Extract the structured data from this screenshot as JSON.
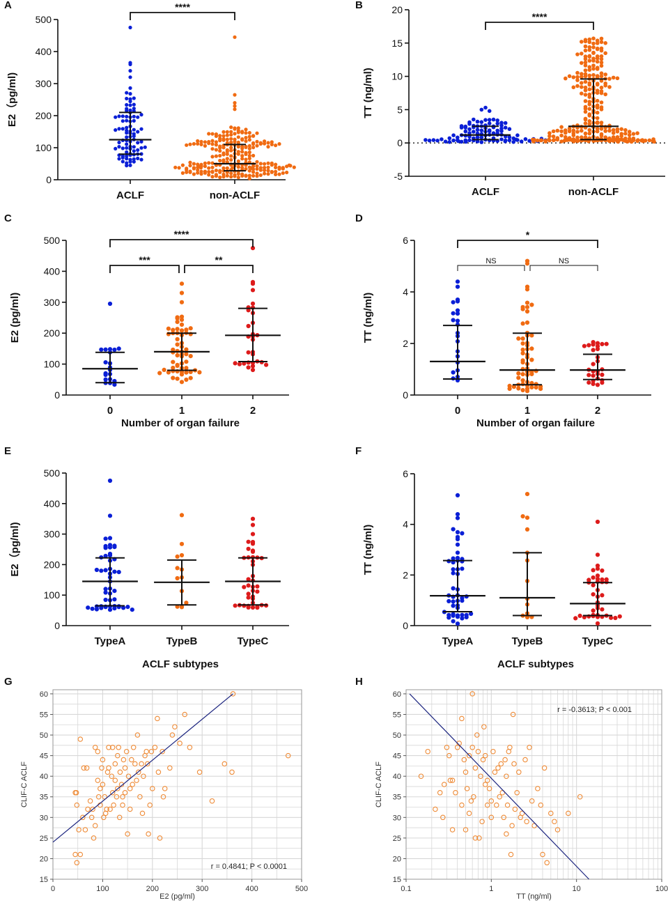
{
  "figure": {
    "panel_letters": [
      "A",
      "B",
      "C",
      "D",
      "E",
      "F",
      "G",
      "H"
    ]
  },
  "colors": {
    "blue": "#0a1fd6",
    "orange": "#f06b12",
    "red": "#dd1b1b",
    "scatter_marker": "#ee8a35",
    "fit_line": "#1a237e",
    "axis": "#111111",
    "grid": "#d7d7d7"
  },
  "chart_data": [
    {
      "id": "A",
      "type": "scatter-dot-plot",
      "ylabel": "E2（pg/ml)",
      "ylim": [
        0,
        500
      ],
      "yticks": [
        0,
        100,
        200,
        300,
        400,
        500
      ],
      "categories": [
        "ACLF",
        "non-ACLF"
      ],
      "groups": [
        {
          "name": "ACLF",
          "color": "blue",
          "n": 90,
          "median": 125,
          "q1": 80,
          "q3": 210,
          "min": 25,
          "max": 475,
          "outliers": [
            475,
            365,
            360,
            340,
            320
          ]
        },
        {
          "name": "non-ACLF",
          "color": "orange",
          "n": 260,
          "median": 50,
          "q1": 28,
          "q3": 110,
          "min": 2,
          "max": 445,
          "outliers": [
            445,
            265,
            240,
            230,
            220
          ]
        }
      ],
      "significance": [
        {
          "from": 0,
          "to": 1,
          "label": "****"
        }
      ]
    },
    {
      "id": "B",
      "type": "scatter-dot-plot",
      "ylabel": "TT (ng/ml)",
      "ylim": [
        -5,
        20
      ],
      "yticks": [
        -5,
        0,
        5,
        10,
        15,
        20
      ],
      "zero_line": true,
      "categories": [
        "ACLF",
        "non-ACLF"
      ],
      "groups": [
        {
          "name": "ACLF",
          "color": "blue",
          "n": 100,
          "median": 1.2,
          "q1": 0.5,
          "q3": 2.5,
          "min": 0.1,
          "max": 5.3,
          "outliers": [
            5.3,
            5.0,
            4.8
          ]
        },
        {
          "name": "non-ACLF",
          "color": "orange",
          "n": 280,
          "median": 2.5,
          "q1": 0.5,
          "q3": 9.6,
          "min": 0.1,
          "max": 15.2,
          "outliers": [
            15.2,
            15.0,
            14.5,
            14.2
          ]
        }
      ],
      "significance": [
        {
          "from": 0,
          "to": 1,
          "label": "****"
        }
      ]
    },
    {
      "id": "C",
      "type": "scatter-dot-plot",
      "ylabel": "E2 (pg/ml)",
      "xlabel": "Number of organ failure",
      "ylim": [
        0,
        500
      ],
      "yticks": [
        0,
        100,
        200,
        300,
        400,
        500
      ],
      "categories": [
        "0",
        "1",
        "2"
      ],
      "groups": [
        {
          "name": "0",
          "color": "blue",
          "n": 20,
          "median": 85,
          "q1": 40,
          "q3": 138,
          "min": 30,
          "max": 295,
          "outliers": [
            295,
            150
          ]
        },
        {
          "name": "1",
          "color": "orange",
          "n": 60,
          "median": 140,
          "q1": 80,
          "q3": 200,
          "min": 40,
          "max": 360,
          "outliers": [
            360,
            330,
            300
          ]
        },
        {
          "name": "2",
          "color": "red",
          "n": 30,
          "median": 193,
          "q1": 108,
          "q3": 280,
          "min": 80,
          "max": 475,
          "outliers": [
            475,
            365,
            360
          ]
        }
      ],
      "significance": [
        {
          "from": 0,
          "to": 2,
          "label": "****"
        },
        {
          "from": 0,
          "to": 1,
          "label": "***"
        },
        {
          "from": 1,
          "to": 2,
          "label": "**"
        }
      ]
    },
    {
      "id": "D",
      "type": "scatter-dot-plot",
      "ylabel": "TT (ng/ml)",
      "xlabel": "Number of organ failure",
      "ylim": [
        0,
        6
      ],
      "yticks": [
        0,
        2,
        4,
        6
      ],
      "categories": [
        "0",
        "1",
        "2"
      ],
      "groups": [
        {
          "name": "0",
          "color": "blue",
          "n": 22,
          "median": 1.3,
          "q1": 0.62,
          "q3": 2.7,
          "min": 0.3,
          "max": 4.4,
          "outliers": [
            4.4,
            4.2,
            3.7,
            3.6
          ]
        },
        {
          "name": "1",
          "color": "orange",
          "n": 60,
          "median": 0.97,
          "q1": 0.4,
          "q3": 2.4,
          "min": 0.05,
          "max": 5.2,
          "outliers": [
            5.2,
            5.1,
            4.2,
            4.1,
            3.5
          ]
        },
        {
          "name": "2",
          "color": "red",
          "n": 28,
          "median": 0.97,
          "q1": 0.6,
          "q3": 1.58,
          "min": 0.2,
          "max": 2.05,
          "outliers": [
            2.05,
            1.9
          ]
        }
      ],
      "significance": [
        {
          "from": 0,
          "to": 2,
          "label": "*"
        },
        {
          "from": 0,
          "to": 1,
          "label": "NS"
        },
        {
          "from": 1,
          "to": 2,
          "label": "NS"
        }
      ]
    },
    {
      "id": "E",
      "type": "scatter-dot-plot",
      "ylabel": "E2（pg/ml)",
      "xlabel": "ACLF subtypes",
      "ylim": [
        0,
        500
      ],
      "yticks": [
        0,
        100,
        200,
        300,
        400,
        500
      ],
      "categories": [
        "TypeA",
        "TypeB",
        "TypeC"
      ],
      "groups": [
        {
          "name": "TypeA",
          "color": "blue",
          "n": 50,
          "median": 145,
          "q1": 65,
          "q3": 222,
          "min": 45,
          "max": 475,
          "outliers": [
            475,
            360,
            285
          ]
        },
        {
          "name": "TypeB",
          "color": "orange",
          "n": 13,
          "median": 142,
          "q1": 68,
          "q3": 215,
          "min": 40,
          "max": 362,
          "outliers": [
            362
          ]
        },
        {
          "name": "TypeC",
          "color": "red",
          "n": 40,
          "median": 145,
          "q1": 68,
          "q3": 222,
          "min": 55,
          "max": 350,
          "outliers": [
            350,
            330,
            300
          ]
        }
      ]
    },
    {
      "id": "F",
      "type": "scatter-dot-plot",
      "ylabel": "TT (ng/ml)",
      "xlabel": "ACLF subtypes",
      "ylim": [
        0,
        6
      ],
      "yticks": [
        0,
        2,
        4,
        6
      ],
      "categories": [
        "TypeA",
        "TypeB",
        "TypeC"
      ],
      "groups": [
        {
          "name": "TypeA",
          "color": "blue",
          "n": 50,
          "median": 1.18,
          "q1": 0.55,
          "q3": 2.57,
          "min": 0.05,
          "max": 5.15,
          "outliers": [
            5.15,
            4.4,
            4.25,
            3.5,
            3.2
          ]
        },
        {
          "name": "TypeB",
          "color": "orange",
          "n": 13,
          "median": 1.1,
          "q1": 0.4,
          "q3": 2.88,
          "min": 0.3,
          "max": 5.2,
          "outliers": [
            5.2,
            3.8
          ]
        },
        {
          "name": "TypeC",
          "color": "red",
          "n": 40,
          "median": 0.87,
          "q1": 0.4,
          "q3": 1.7,
          "min": 0.05,
          "max": 4.1,
          "outliers": [
            4.1,
            2.8
          ]
        }
      ]
    },
    {
      "id": "G",
      "type": "scatter",
      "xlabel": "E2 (pg/ml)",
      "ylabel": "CLIF-C ACLF",
      "xlim": [
        0,
        500
      ],
      "ylim": [
        15,
        61
      ],
      "xticks": [
        0,
        100,
        200,
        300,
        400,
        500
      ],
      "yticks": [
        15,
        20,
        25,
        30,
        35,
        40,
        45,
        50,
        55,
        60
      ],
      "annotation": "r = 0.4841; P < 0.0001",
      "fit_line": [
        [
          0,
          24
        ],
        [
          362,
          60
        ]
      ],
      "points": [
        [
          45,
          21
        ],
        [
          55,
          21
        ],
        [
          48,
          19
        ],
        [
          52,
          27
        ],
        [
          45,
          36
        ],
        [
          48,
          33
        ],
        [
          47,
          36
        ],
        [
          55,
          49
        ],
        [
          60,
          30
        ],
        [
          62,
          42
        ],
        [
          65,
          27
        ],
        [
          68,
          42
        ],
        [
          70,
          32
        ],
        [
          75,
          34
        ],
        [
          78,
          30
        ],
        [
          80,
          32
        ],
        [
          82,
          25
        ],
        [
          85,
          28
        ],
        [
          85,
          47
        ],
        [
          90,
          46
        ],
        [
          90,
          39
        ],
        [
          92,
          35
        ],
        [
          95,
          33
        ],
        [
          95,
          37
        ],
        [
          98,
          42
        ],
        [
          100,
          44
        ],
        [
          100,
          38
        ],
        [
          102,
          30
        ],
        [
          104,
          35
        ],
        [
          106,
          31
        ],
        [
          108,
          32
        ],
        [
          110,
          41
        ],
        [
          112,
          47
        ],
        [
          112,
          42
        ],
        [
          115,
          32
        ],
        [
          118,
          40
        ],
        [
          120,
          36
        ],
        [
          120,
          47
        ],
        [
          122,
          33
        ],
        [
          125,
          39
        ],
        [
          125,
          43
        ],
        [
          128,
          35
        ],
        [
          130,
          37
        ],
        [
          130,
          45
        ],
        [
          132,
          47
        ],
        [
          134,
          30
        ],
        [
          135,
          41
        ],
        [
          138,
          38
        ],
        [
          140,
          33
        ],
        [
          140,
          35
        ],
        [
          142,
          44
        ],
        [
          145,
          36
        ],
        [
          145,
          42
        ],
        [
          148,
          46
        ],
        [
          150,
          26
        ],
        [
          152,
          40
        ],
        [
          155,
          37
        ],
        [
          155,
          32
        ],
        [
          158,
          44
        ],
        [
          160,
          38
        ],
        [
          162,
          47
        ],
        [
          165,
          43
        ],
        [
          168,
          39
        ],
        [
          170,
          50
        ],
        [
          172,
          41
        ],
        [
          175,
          35
        ],
        [
          178,
          43
        ],
        [
          180,
          31
        ],
        [
          182,
          40
        ],
        [
          185,
          45
        ],
        [
          188,
          46
        ],
        [
          190,
          43
        ],
        [
          192,
          26
        ],
        [
          195,
          33
        ],
        [
          198,
          46
        ],
        [
          200,
          37
        ],
        [
          205,
          47
        ],
        [
          210,
          54
        ],
        [
          212,
          41
        ],
        [
          215,
          25
        ],
        [
          220,
          46
        ],
        [
          222,
          35
        ],
        [
          225,
          37
        ],
        [
          235,
          42
        ],
        [
          240,
          50
        ],
        [
          245,
          52
        ],
        [
          255,
          48
        ],
        [
          265,
          55
        ],
        [
          275,
          47
        ],
        [
          295,
          41
        ],
        [
          320,
          34
        ],
        [
          345,
          43
        ],
        [
          360,
          41
        ],
        [
          362,
          60
        ],
        [
          473,
          45
        ]
      ]
    },
    {
      "id": "H",
      "type": "scatter",
      "xscale": "log",
      "xlabel": "TT (ng/ml)",
      "ylabel": "CLIF-C ACLF",
      "xlim": [
        0.1,
        100
      ],
      "ylim": [
        15,
        61
      ],
      "xticks": [
        0.1,
        1,
        10,
        100
      ],
      "xtick_labels": [
        "0.1",
        "1",
        "10",
        "100"
      ],
      "yticks": [
        15,
        20,
        25,
        30,
        35,
        40,
        45,
        50,
        55,
        60
      ],
      "annotation": "r = -0.3613; P < 0.001",
      "fit_line": [
        [
          0.11,
          60
        ],
        [
          14,
          15
        ]
      ],
      "points": [
        [
          0.15,
          40
        ],
        [
          0.18,
          46
        ],
        [
          0.22,
          32
        ],
        [
          0.25,
          36
        ],
        [
          0.27,
          30
        ],
        [
          0.28,
          38
        ],
        [
          0.3,
          47
        ],
        [
          0.32,
          45
        ],
        [
          0.33,
          39
        ],
        [
          0.35,
          39
        ],
        [
          0.35,
          27
        ],
        [
          0.38,
          36
        ],
        [
          0.4,
          47
        ],
        [
          0.42,
          48
        ],
        [
          0.45,
          54
        ],
        [
          0.45,
          33
        ],
        [
          0.48,
          44
        ],
        [
          0.5,
          27
        ],
        [
          0.5,
          41
        ],
        [
          0.52,
          37
        ],
        [
          0.55,
          45
        ],
        [
          0.55,
          31
        ],
        [
          0.58,
          34
        ],
        [
          0.6,
          60
        ],
        [
          0.6,
          47
        ],
        [
          0.62,
          35
        ],
        [
          0.65,
          42
        ],
        [
          0.65,
          25
        ],
        [
          0.68,
          50
        ],
        [
          0.7,
          46
        ],
        [
          0.72,
          25
        ],
        [
          0.75,
          40
        ],
        [
          0.78,
          29
        ],
        [
          0.8,
          44
        ],
        [
          0.82,
          52
        ],
        [
          0.85,
          38
        ],
        [
          0.85,
          45
        ],
        [
          0.9,
          33
        ],
        [
          0.9,
          39
        ],
        [
          0.95,
          37
        ],
        [
          1.0,
          30
        ],
        [
          1.0,
          34
        ],
        [
          1.05,
          46
        ],
        [
          1.1,
          41
        ],
        [
          1.15,
          33
        ],
        [
          1.2,
          42
        ],
        [
          1.25,
          35
        ],
        [
          1.3,
          43
        ],
        [
          1.35,
          36
        ],
        [
          1.4,
          30
        ],
        [
          1.45,
          44
        ],
        [
          1.5,
          40
        ],
        [
          1.5,
          26
        ],
        [
          1.55,
          33
        ],
        [
          1.6,
          46
        ],
        [
          1.65,
          47
        ],
        [
          1.7,
          21
        ],
        [
          1.75,
          28
        ],
        [
          1.8,
          55
        ],
        [
          1.85,
          43
        ],
        [
          1.9,
          32
        ],
        [
          2.0,
          36
        ],
        [
          2.1,
          41
        ],
        [
          2.2,
          30
        ],
        [
          2.3,
          31
        ],
        [
          2.5,
          44
        ],
        [
          2.6,
          29
        ],
        [
          2.8,
          47
        ],
        [
          3.0,
          34
        ],
        [
          3.2,
          28
        ],
        [
          3.5,
          37
        ],
        [
          3.8,
          33
        ],
        [
          4.0,
          21
        ],
        [
          4.2,
          42
        ],
        [
          4.5,
          19
        ],
        [
          5.0,
          31
        ],
        [
          5.5,
          29
        ],
        [
          6.0,
          27
        ],
        [
          8.0,
          31
        ],
        [
          11.0,
          35
        ]
      ]
    }
  ]
}
